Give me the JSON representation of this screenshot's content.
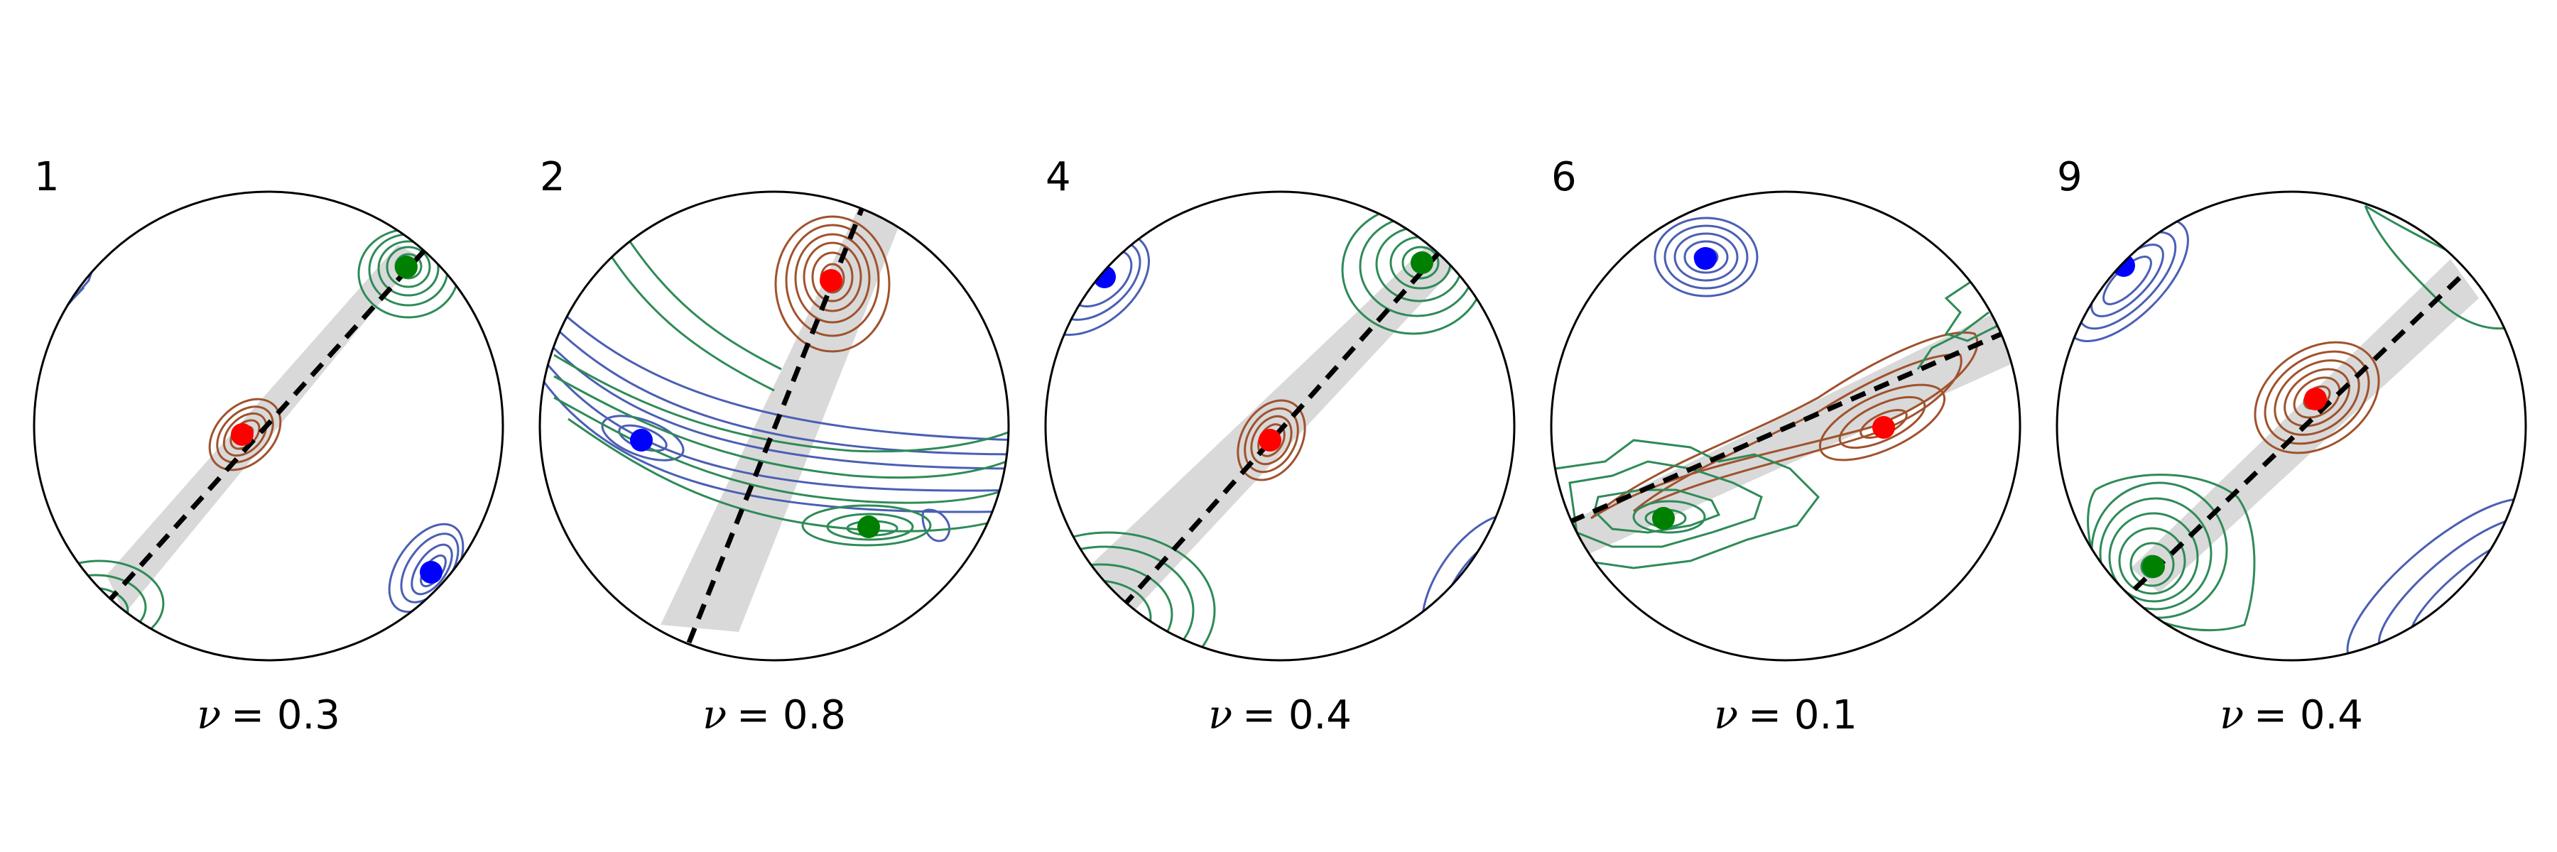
{
  "figure": {
    "panels": [
      {
        "number": "1",
        "nu_label": "= 0.3"
      },
      {
        "number": "2",
        "nu_label": "= 0.8"
      },
      {
        "number": "4",
        "nu_label": "= 0.4"
      },
      {
        "number": "6",
        "nu_label": "= 0.1"
      },
      {
        "number": "9",
        "nu_label": "= 0.4"
      }
    ],
    "nu_symbol": "ν",
    "colors": {
      "red_point": "#ff0000",
      "green_point": "#008000",
      "blue_point": "#0000ff",
      "red_contour": "#a0522d",
      "green_contour": "#2e8b57",
      "blue_contour": "#4a5fb4",
      "cone": "#d3d3d3",
      "dashed_line": "#000000",
      "circle": "#000000"
    }
  }
}
